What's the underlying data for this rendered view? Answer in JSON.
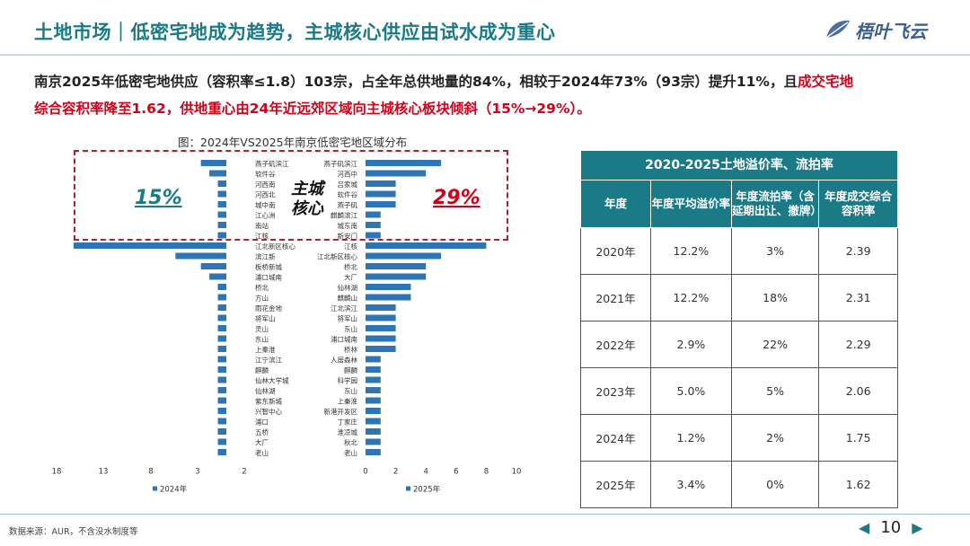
{
  "header": {
    "title": "土地市场｜低密宅地成为趋势，主城核心供应由试水成为重心",
    "logo_text": "梧叶飞云"
  },
  "description": {
    "line1_prefix": "南京2025年低密宅地供应（容积率≤1.8）103宗，占全年总供地量的84%，相较于2024年73%（93宗）提升11%，且",
    "line1_red": "成交宅地",
    "line2_red": "综合容积率降至1.62，供地重心由24年近远郊区域向主城核心板块倾斜（15%→29%）。"
  },
  "chart_data": {
    "type": "bar",
    "title": "图：2024年VS2025年南京低密宅地区域分布",
    "series": [
      {
        "name": "2024年",
        "color": "#2e75b6",
        "direction": "left",
        "axis_ticks": [
          18,
          13,
          8,
          3,
          2
        ],
        "xlim": [
          0,
          18
        ],
        "categories": [
          "燕子矶滨江",
          "软件谷",
          "河西南",
          "河西北",
          "城中南",
          "江心洲",
          "南站",
          "江核",
          "江北新区核心",
          "滨江新",
          "板桥新城",
          "浦口城南",
          "桥北",
          "方山",
          "雨花金地",
          "将军山",
          "灵山",
          "东山",
          "上秦淮",
          "江宁滨江",
          "麒麟",
          "仙林大学城",
          "仙林湖",
          "紫东新城",
          "兴智中心",
          "浦口",
          "五桥",
          "大厂",
          "老山"
        ],
        "values": [
          3,
          2,
          1,
          1,
          1,
          1,
          1,
          1,
          18,
          6,
          3,
          2,
          1,
          1,
          1,
          1,
          1,
          1,
          1,
          1,
          1,
          1,
          1,
          1,
          1,
          1,
          1,
          1,
          1
        ]
      },
      {
        "name": "2025年",
        "color": "#2e75b6",
        "direction": "right",
        "axis_ticks": [
          0,
          2,
          4,
          6,
          8,
          10
        ],
        "xlim": [
          0,
          10
        ],
        "categories": [
          "燕子矶滨江",
          "河西中",
          "吕家城",
          "软件谷",
          "燕子矶",
          "麒麟滨江",
          "城东南",
          "新安门",
          "江核",
          "江北新区核心",
          "桥北",
          "大厂",
          "仙林湖",
          "麒麟山",
          "江北滨江",
          "将军山",
          "东山",
          "浦口城南",
          "桥林",
          "人居森林",
          "麒麟",
          "科学园",
          "东山",
          "上秦淮",
          "新港开发区",
          "丁家庄",
          "淮凉城",
          "秋北",
          "老山"
        ],
        "values": [
          5,
          4,
          2,
          2,
          2,
          1,
          1,
          1,
          8,
          5,
          4,
          4,
          3,
          3,
          2,
          2,
          2,
          2,
          2,
          1,
          1,
          1,
          1,
          1,
          1,
          1,
          1,
          1,
          1
        ]
      }
    ]
  },
  "annotations": {
    "core_label_1": "主城",
    "core_label_2": "核心",
    "pct_2024": "15%",
    "pct_2025": "29%"
  },
  "table": {
    "title": "2020-2025土地溢价率、流拍率",
    "headers": [
      "年度",
      "年度平均溢价率",
      "年度流拍率（含延期出让、撤牌）",
      "年度成交综合容积率"
    ],
    "rows": [
      [
        "2020年",
        "12.2%",
        "3%",
        "2.39"
      ],
      [
        "2021年",
        "12.2%",
        "18%",
        "2.31"
      ],
      [
        "2022年",
        "2.9%",
        "22%",
        "2.29"
      ],
      [
        "2023年",
        "5.0%",
        "5%",
        "2.06"
      ],
      [
        "2024年",
        "1.2%",
        "2%",
        "1.75"
      ],
      [
        "2025年",
        "3.4%",
        "0%",
        "1.62"
      ]
    ]
  },
  "footer": {
    "source": "数据来源：AUR，不含没水制度等",
    "page": "10"
  }
}
